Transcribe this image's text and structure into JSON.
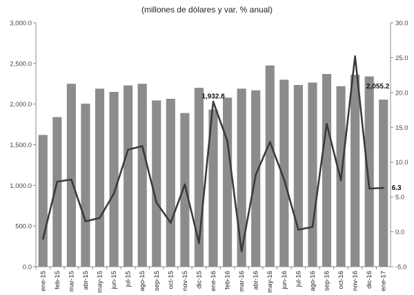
{
  "chart_data": {
    "type": "bar+line",
    "title": "(millones de dólares y var. % anual)",
    "categories": [
      "ene-15",
      "feb-15",
      "mar-15",
      "abr-15",
      "may-15",
      "jun-15",
      "jul-15",
      "ago-15",
      "sep-15",
      "oct-15",
      "nov-15",
      "dic-15",
      "ene-16",
      "feb-16",
      "mar-16",
      "abr-16",
      "may-16",
      "jun-16",
      "jul-16",
      "ago-16",
      "sep-16",
      "oct-16",
      "nov-16",
      "dic-16",
      "ene-17"
    ],
    "series": [
      {
        "axis": "left",
        "kind": "bar",
        "color": "#8c8c8c",
        "values": [
          1620,
          1840,
          2250,
          2005,
          2190,
          2150,
          2230,
          2250,
          2045,
          2065,
          1890,
          2200,
          1932.8,
          2080,
          2190,
          2170,
          2475,
          2300,
          2235,
          2265,
          2370,
          2220,
          2360,
          2340,
          2055.2
        ]
      },
      {
        "axis": "right",
        "kind": "line",
        "color": "#3a3a3a",
        "values": [
          -1.0,
          7.2,
          7.5,
          1.5,
          2.0,
          5.5,
          11.8,
          12.3,
          4.2,
          1.3,
          6.8,
          -1.6,
          18.7,
          13.0,
          -2.8,
          8.2,
          12.9,
          7.5,
          0.3,
          0.7,
          15.5,
          7.4,
          25.2,
          6.2,
          6.3
        ]
      }
    ],
    "y_left": {
      "min": 0,
      "max": 3000,
      "ticks": [
        "0.0",
        "500.0",
        "1,000.0",
        "1,500.0",
        "2,000.0",
        "2,500.0",
        "3,000.0"
      ]
    },
    "y_right": {
      "min": -5,
      "max": 30,
      "ticks": [
        "-5.0",
        "0.0",
        "5.0",
        "10.0",
        "15.0",
        "20.0",
        "25.0",
        "30.0"
      ]
    },
    "annotations": [
      {
        "index": 12,
        "series": 0,
        "text": "1,932.8"
      },
      {
        "index": 24,
        "series": 0,
        "text": "2,055.2"
      },
      {
        "index": 24,
        "series": 1,
        "text": "6.3"
      }
    ],
    "grid": false,
    "legend": "none"
  }
}
